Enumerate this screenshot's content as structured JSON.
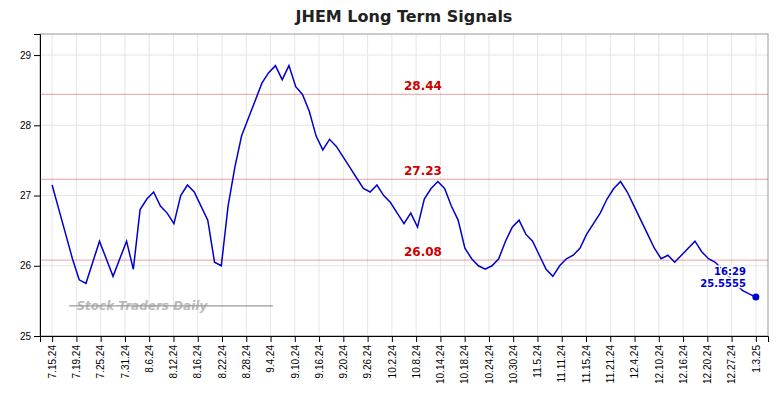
{
  "chart_data": {
    "type": "line",
    "title": "JHEM Long Term Signals",
    "color": "#0000cc",
    "grid": true,
    "x": [
      0,
      0.278846,
      0.557692,
      0.836538,
      1.115385,
      1.394231,
      1.673077,
      1.951923,
      2.230769,
      2.509615,
      2.788462,
      3.067308,
      3.346154,
      3.625,
      3.903846,
      4.182692,
      4.461538,
      4.740385,
      5.019231,
      5.298077,
      5.576923,
      5.855769,
      6.134615,
      6.413462,
      6.692308,
      6.971154,
      7.25,
      7.528846,
      7.807692,
      8.086538,
      8.365385,
      8.644231,
      8.923077,
      9.201923,
      9.480769,
      9.759615,
      10.038462,
      10.317308,
      10.596154,
      10.875,
      11.153846,
      11.432692,
      11.711538,
      11.990385,
      12.269231,
      12.548077,
      12.826923,
      13.105769,
      13.384615,
      13.663462,
      13.942308,
      14.221154,
      14.5,
      14.778846,
      15.057692,
      15.336538,
      15.615385,
      15.894231,
      16.173077,
      16.451923,
      16.730769,
      17.009615,
      17.288462,
      17.567308,
      17.846154,
      18.125,
      18.403846,
      18.682692,
      18.961538,
      19.240385,
      19.519231,
      19.798077,
      20.076923,
      20.355769,
      20.634615,
      20.913462,
      21.192308,
      21.471154,
      21.75,
      22.028846,
      22.307692,
      22.586538,
      22.865385,
      23.144231,
      23.423077,
      23.701923,
      23.980769,
      24.259615,
      24.538462,
      24.817308,
      25.096154,
      25.375,
      25.653846,
      25.932692,
      26.211538,
      26.490385,
      26.769231,
      27.048077,
      27.326923,
      27.605769,
      27.884615,
      28.163462,
      28.442308,
      28.721154,
      29
    ],
    "values": [
      27.15,
      26.8,
      26.45,
      26.1,
      25.8,
      25.75,
      26.05,
      26.35,
      26.1,
      25.85,
      26.1,
      26.35,
      25.95,
      26.8,
      26.95,
      27.05,
      26.85,
      26.75,
      26.6,
      27.0,
      27.15,
      27.05,
      26.85,
      26.65,
      26.05,
      26.0,
      26.85,
      27.4,
      27.85,
      28.1,
      28.35,
      28.6,
      28.75,
      28.85,
      28.65,
      28.85,
      28.55,
      28.44,
      28.2,
      27.85,
      27.65,
      27.8,
      27.7,
      27.55,
      27.4,
      27.25,
      27.1,
      27.05,
      27.15,
      27.0,
      26.9,
      26.75,
      26.6,
      26.75,
      26.55,
      26.95,
      27.1,
      27.2,
      27.1,
      26.85,
      26.65,
      26.25,
      26.1,
      26.0,
      25.95,
      26.0,
      26.1,
      26.35,
      26.55,
      26.65,
      26.45,
      26.35,
      26.15,
      25.95,
      25.85,
      26.0,
      26.1,
      26.15,
      26.25,
      26.45,
      26.6,
      26.75,
      26.95,
      27.1,
      27.2,
      27.05,
      26.85,
      26.65,
      26.45,
      26.25,
      26.1,
      26.15,
      26.05,
      26.15,
      26.25,
      26.35,
      26.2,
      26.1,
      26.05,
      25.95,
      25.85,
      25.75,
      25.65,
      25.6,
      25.5555
    ],
    "xlim": [
      -0.5,
      29.5
    ],
    "xticks": [
      {
        "value": 0,
        "label": "7.15.24"
      },
      {
        "value": 1,
        "label": "7.19.24"
      },
      {
        "value": 2,
        "label": "7.25.24"
      },
      {
        "value": 3,
        "label": "7.31.24"
      },
      {
        "value": 4,
        "label": "8.6.24"
      },
      {
        "value": 5,
        "label": "8.12.24"
      },
      {
        "value": 6,
        "label": "8.16.24"
      },
      {
        "value": 7,
        "label": "8.22.24"
      },
      {
        "value": 8,
        "label": "8.28.24"
      },
      {
        "value": 9,
        "label": "9.4.24"
      },
      {
        "value": 10,
        "label": "9.10.24"
      },
      {
        "value": 11,
        "label": "9.16.24"
      },
      {
        "value": 12,
        "label": "9.20.24"
      },
      {
        "value": 13,
        "label": "9.26.24"
      },
      {
        "value": 14,
        "label": "10.2.24"
      },
      {
        "value": 15,
        "label": "10.8.24"
      },
      {
        "value": 16,
        "label": "10.14.24"
      },
      {
        "value": 17,
        "label": "10.18.24"
      },
      {
        "value": 18,
        "label": "10.24.24"
      },
      {
        "value": 19,
        "label": "10.30.24"
      },
      {
        "value": 20,
        "label": "11.5.24"
      },
      {
        "value": 21,
        "label": "11.11.24"
      },
      {
        "value": 22,
        "label": "11.15.24"
      },
      {
        "value": 23,
        "label": "11.21.24"
      },
      {
        "value": 24,
        "label": "12.4.24"
      },
      {
        "value": 25,
        "label": "12.10.24"
      },
      {
        "value": 26,
        "label": "12.16.24"
      },
      {
        "value": 27,
        "label": "12.20.24"
      },
      {
        "value": 28,
        "label": "12.27.24"
      },
      {
        "value": 29,
        "label": "1.3.25"
      }
    ],
    "ylim": [
      25.0,
      29.3
    ],
    "yticks": [
      25,
      26,
      27,
      28,
      29
    ],
    "reference_lines": [
      {
        "value": 28.44,
        "color": "#cc0000"
      },
      {
        "value": 27.23,
        "color": "#cc0000"
      },
      {
        "value": 26.08,
        "color": "#cc0000"
      }
    ],
    "annotations": [
      {
        "text": "16:29",
        "value": 25.5555,
        "color": "#0000cc"
      },
      {
        "text": "Stock Traders Daily"
      }
    ]
  }
}
